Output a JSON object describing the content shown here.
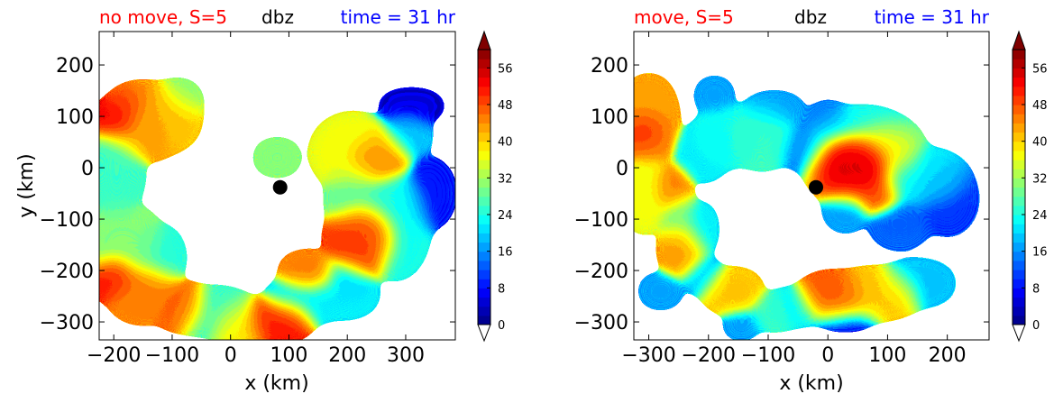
{
  "chart_data": [
    {
      "type": "heatmap",
      "title_left": "no move, S=5",
      "title_center": "dbz",
      "title_right": "time = 31 hr",
      "title_left_color": "#ff0000",
      "title_center_color": "#000000",
      "title_right_color": "#0000ff",
      "xlabel": "x (km)",
      "ylabel": "y (km)",
      "xlim": [
        -225,
        385
      ],
      "ylim": [
        -335,
        265
      ],
      "xticks": [
        "−200",
        "−100",
        "0",
        "100",
        "200",
        "300"
      ],
      "xtick_values": [
        -200,
        -100,
        0,
        100,
        200,
        300
      ],
      "yticks": [
        "−300",
        "−200",
        "−100",
        "0",
        "100",
        "200"
      ],
      "ytick_values": [
        -300,
        -200,
        -100,
        0,
        100,
        200
      ],
      "marker": {
        "x": 85,
        "y": -38
      },
      "colorbar": {
        "levels": [
          0,
          60
        ],
        "ticks": [
          "0",
          "8",
          "16",
          "24",
          "32",
          "40",
          "48",
          "56"
        ],
        "tick_values": [
          0,
          8,
          16,
          24,
          32,
          40,
          48,
          56
        ],
        "extend": "both",
        "colormap": "jet"
      },
      "blobs": [
        {
          "x": -150,
          "y": 90,
          "rx": 55,
          "ry": 55,
          "peak": 42
        },
        {
          "x": -195,
          "y": 90,
          "rx": 22,
          "ry": 24,
          "peak": 52
        },
        {
          "x": -170,
          "y": 120,
          "rx": 18,
          "ry": 14,
          "peak": 50
        },
        {
          "x": -110,
          "y": 95,
          "rx": 40,
          "ry": 42,
          "peak": 40
        },
        {
          "x": -90,
          "y": 130,
          "rx": 25,
          "ry": 22,
          "peak": 30
        },
        {
          "x": -195,
          "y": 0,
          "rx": 30,
          "ry": 80,
          "peak": 26
        },
        {
          "x": -185,
          "y": -150,
          "rx": 55,
          "ry": 60,
          "peak": 30
        },
        {
          "x": -200,
          "y": -210,
          "rx": 28,
          "ry": 28,
          "peak": 50
        },
        {
          "x": -150,
          "y": -240,
          "rx": 45,
          "ry": 40,
          "peak": 44
        },
        {
          "x": -120,
          "y": -175,
          "rx": 25,
          "ry": 45,
          "peak": 25
        },
        {
          "x": -85,
          "y": -270,
          "rx": 30,
          "ry": 25,
          "peak": 46
        },
        {
          "x": -30,
          "y": -280,
          "rx": 60,
          "ry": 28,
          "peak": 26
        },
        {
          "x": 20,
          "y": -300,
          "rx": 40,
          "ry": 22,
          "peak": 38
        },
        {
          "x": 80,
          "y": -295,
          "rx": 45,
          "ry": 20,
          "peak": 50
        },
        {
          "x": 120,
          "y": -260,
          "rx": 50,
          "ry": 30,
          "peak": 22
        },
        {
          "x": 135,
          "y": -205,
          "rx": 35,
          "ry": 20,
          "peak": 44
        },
        {
          "x": 195,
          "y": -245,
          "rx": 45,
          "ry": 30,
          "peak": 22
        },
        {
          "x": 80,
          "y": 20,
          "rx": 25,
          "ry": 16,
          "peak": 30
        },
        {
          "x": 210,
          "y": 30,
          "rx": 55,
          "ry": 55,
          "peak": 36
        },
        {
          "x": 250,
          "y": 20,
          "rx": 40,
          "ry": 35,
          "peak": 44
        },
        {
          "x": 300,
          "y": 60,
          "rx": 30,
          "ry": 30,
          "peak": 20
        },
        {
          "x": 215,
          "y": -60,
          "rx": 35,
          "ry": 55,
          "peak": 28
        },
        {
          "x": 225,
          "y": -140,
          "rx": 45,
          "ry": 55,
          "peak": 48
        },
        {
          "x": 280,
          "y": -110,
          "rx": 45,
          "ry": 90,
          "peak": 24
        },
        {
          "x": 340,
          "y": -50,
          "rx": 35,
          "ry": 60,
          "peak": 10
        },
        {
          "x": 310,
          "y": 120,
          "rx": 55,
          "ry": 28,
          "peak": 6
        },
        {
          "x": 200,
          "y": -210,
          "rx": 30,
          "ry": 25,
          "peak": 20
        }
      ]
    },
    {
      "type": "heatmap",
      "title_left": "move, S=5",
      "title_center": "dbz",
      "title_right": "time = 31 hr",
      "title_left_color": "#ff0000",
      "title_center_color": "#000000",
      "title_right_color": "#0000ff",
      "xlabel": "x (km)",
      "ylabel": "",
      "xlim": [
        -325,
        270
      ],
      "ylim": [
        -335,
        265
      ],
      "xticks": [
        "−300",
        "−200",
        "−100",
        "0",
        "100",
        "200"
      ],
      "xtick_values": [
        -300,
        -200,
        -100,
        0,
        100,
        200
      ],
      "yticks": [
        "−300",
        "−200",
        "−100",
        "0",
        "100",
        "200"
      ],
      "ytick_values": [
        -300,
        -200,
        -100,
        0,
        100,
        200
      ],
      "marker": {
        "x": -20,
        "y": -38
      },
      "colorbar": {
        "levels": [
          0,
          60
        ],
        "ticks": [
          "0",
          "8",
          "16",
          "24",
          "32",
          "40",
          "48",
          "56"
        ],
        "tick_values": [
          0,
          8,
          16,
          24,
          32,
          40,
          48,
          56
        ],
        "extend": "both",
        "colormap": "jet"
      },
      "blobs": [
        {
          "x": -300,
          "y": 90,
          "rx": 30,
          "ry": 70,
          "peak": 42
        },
        {
          "x": -305,
          "y": 70,
          "rx": 20,
          "ry": 30,
          "peak": 50
        },
        {
          "x": -305,
          "y": -50,
          "rx": 20,
          "ry": 60,
          "peak": 36
        },
        {
          "x": -265,
          "y": -40,
          "rx": 18,
          "ry": 25,
          "peak": 44
        },
        {
          "x": -250,
          "y": -100,
          "rx": 12,
          "ry": 40,
          "peak": 30
        },
        {
          "x": -245,
          "y": -160,
          "rx": 20,
          "ry": 35,
          "peak": 42
        },
        {
          "x": -215,
          "y": -120,
          "rx": 14,
          "ry": 40,
          "peak": 22
        },
        {
          "x": -210,
          "y": 30,
          "rx": 30,
          "ry": 40,
          "peak": 22
        },
        {
          "x": -190,
          "y": 140,
          "rx": 20,
          "ry": 22,
          "peak": 18
        },
        {
          "x": -170,
          "y": 60,
          "rx": 40,
          "ry": 40,
          "peak": 24
        },
        {
          "x": -110,
          "y": 60,
          "rx": 40,
          "ry": 45,
          "peak": 26
        },
        {
          "x": -90,
          "y": 110,
          "rx": 40,
          "ry": 20,
          "peak": 18
        },
        {
          "x": -40,
          "y": 40,
          "rx": 30,
          "ry": 30,
          "peak": 16
        },
        {
          "x": 0,
          "y": 90,
          "rx": 25,
          "ry": 25,
          "peak": 16
        },
        {
          "x": 60,
          "y": 20,
          "rx": 90,
          "ry": 80,
          "peak": 24
        },
        {
          "x": 40,
          "y": 0,
          "rx": 55,
          "ry": 50,
          "peak": 54
        },
        {
          "x": 90,
          "y": 30,
          "rx": 50,
          "ry": 40,
          "peak": 40
        },
        {
          "x": 80,
          "y": -40,
          "rx": 25,
          "ry": 30,
          "peak": 48
        },
        {
          "x": 160,
          "y": -20,
          "rx": 60,
          "ry": 40,
          "peak": 22
        },
        {
          "x": 200,
          "y": -60,
          "rx": 40,
          "ry": 60,
          "peak": 12
        },
        {
          "x": 30,
          "y": -80,
          "rx": 25,
          "ry": 30,
          "peak": 18
        },
        {
          "x": 120,
          "y": -110,
          "rx": 40,
          "ry": 35,
          "peak": 14
        },
        {
          "x": -280,
          "y": -240,
          "rx": 25,
          "ry": 18,
          "peak": 18
        },
        {
          "x": -210,
          "y": -210,
          "rx": 20,
          "ry": 22,
          "peak": 20
        },
        {
          "x": -160,
          "y": -240,
          "rx": 35,
          "ry": 22,
          "peak": 40
        },
        {
          "x": -90,
          "y": -280,
          "rx": 25,
          "ry": 18,
          "peak": 26
        },
        {
          "x": -145,
          "y": -305,
          "rx": 20,
          "ry": 14,
          "peak": 18
        },
        {
          "x": -50,
          "y": -270,
          "rx": 30,
          "ry": 20,
          "peak": 22
        },
        {
          "x": 10,
          "y": -250,
          "rx": 45,
          "ry": 25,
          "peak": 46
        },
        {
          "x": 80,
          "y": -245,
          "rx": 60,
          "ry": 28,
          "peak": 40
        },
        {
          "x": 150,
          "y": -225,
          "rx": 50,
          "ry": 28,
          "peak": 20
        },
        {
          "x": 30,
          "y": -290,
          "rx": 45,
          "ry": 15,
          "peak": 10
        }
      ]
    }
  ]
}
